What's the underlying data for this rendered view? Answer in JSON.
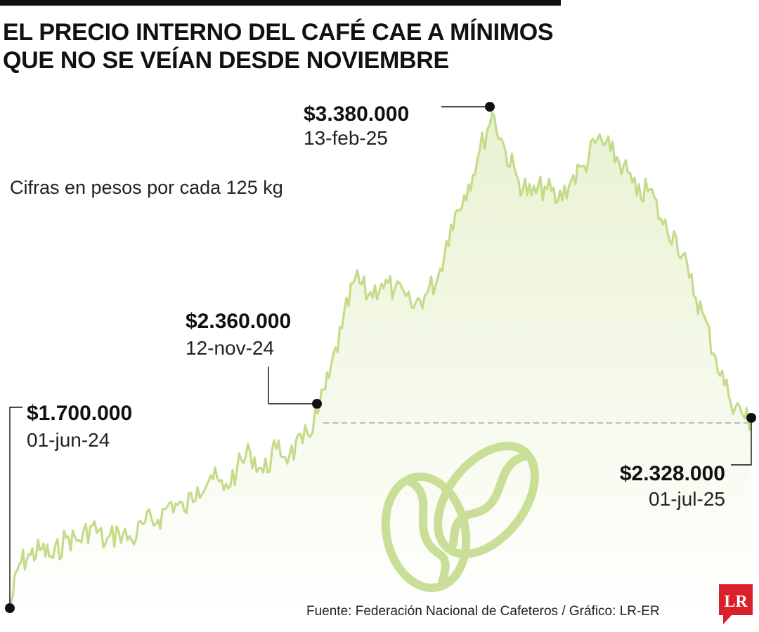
{
  "header": {
    "title": "EL PRECIO INTERNO DEL CAFÉ CAE A MÍNIMOS QUE NO SE VEÍAN DESDE NOVIEMBRE",
    "subtitle": "Cifras en pesos por cada 125 kg"
  },
  "footer": {
    "source": "Fuente: Federación Nacional de Cafeteros / Gráfico: LR-ER",
    "logo_text": "LR"
  },
  "colors": {
    "line": "#c4dc8a",
    "area_top": "#e9f2d2",
    "area_bottom": "#ffffff",
    "bean": "#c9df97",
    "text": "#111111",
    "logo": "#d9202b"
  },
  "icons": [
    "coffee-bean-icon"
  ],
  "annotations": [
    {
      "value": "$1.700.000",
      "date": "01-jun-24"
    },
    {
      "value": "$2.360.000",
      "date": "12-nov-24"
    },
    {
      "value": "$3.380.000",
      "date": "13-feb-25"
    },
    {
      "value": "$2.328.000",
      "date": "01-jul-25"
    }
  ],
  "chart_data": {
    "type": "area",
    "title": "EL PRECIO INTERNO DEL CAFÉ CAE A MÍNIMOS QUE NO SE VEÍAN DESDE NOVIEMBRE",
    "ylabel": "Cifras en pesos por cada 125 kg",
    "x_start": "2024-06-01",
    "x_end": "2025-07-01",
    "ylim": [
      1700000,
      3400000
    ],
    "reference_line": {
      "value": 2328000,
      "style": "dashed"
    },
    "grid": false,
    "series": [
      {
        "points": [
          [
            "2024-06-01",
            1700000
          ],
          [
            "2024-06-06",
            1850000
          ],
          [
            "2024-06-12",
            1880000
          ],
          [
            "2024-06-18",
            1900000
          ],
          [
            "2024-06-24",
            1870000
          ],
          [
            "2024-07-01",
            1940000
          ],
          [
            "2024-07-08",
            1930000
          ],
          [
            "2024-07-15",
            1980000
          ],
          [
            "2024-07-22",
            1920000
          ],
          [
            "2024-07-29",
            1960000
          ],
          [
            "2024-08-05",
            1930000
          ],
          [
            "2024-08-12",
            1990000
          ],
          [
            "2024-08-19",
            2000000
          ],
          [
            "2024-08-26",
            2060000
          ],
          [
            "2024-09-02",
            2030000
          ],
          [
            "2024-09-09",
            2110000
          ],
          [
            "2024-09-16",
            2150000
          ],
          [
            "2024-09-23",
            2100000
          ],
          [
            "2024-09-30",
            2170000
          ],
          [
            "2024-10-07",
            2230000
          ],
          [
            "2024-10-14",
            2160000
          ],
          [
            "2024-10-21",
            2240000
          ],
          [
            "2024-10-28",
            2220000
          ],
          [
            "2024-11-04",
            2260000
          ],
          [
            "2024-11-12",
            2360000
          ],
          [
            "2024-11-18",
            2480000
          ],
          [
            "2024-11-25",
            2650000
          ],
          [
            "2024-12-02",
            2820000
          ],
          [
            "2024-12-09",
            2760000
          ],
          [
            "2024-12-16",
            2800000
          ],
          [
            "2024-12-23",
            2780000
          ],
          [
            "2025-01-01",
            2720000
          ],
          [
            "2025-01-08",
            2760000
          ],
          [
            "2025-01-15",
            2820000
          ],
          [
            "2025-01-22",
            3000000
          ],
          [
            "2025-01-29",
            3100000
          ],
          [
            "2025-02-05",
            3220000
          ],
          [
            "2025-02-13",
            3380000
          ],
          [
            "2025-02-20",
            3250000
          ],
          [
            "2025-02-27",
            3150000
          ],
          [
            "2025-03-06",
            3100000
          ],
          [
            "2025-03-13",
            3130000
          ],
          [
            "2025-03-20",
            3080000
          ],
          [
            "2025-03-27",
            3150000
          ],
          [
            "2025-04-03",
            3200000
          ],
          [
            "2025-04-10",
            3290000
          ],
          [
            "2025-04-17",
            3250000
          ],
          [
            "2025-04-24",
            3200000
          ],
          [
            "2025-05-01",
            3100000
          ],
          [
            "2025-05-08",
            3120000
          ],
          [
            "2025-05-15",
            3000000
          ],
          [
            "2025-05-22",
            2960000
          ],
          [
            "2025-05-29",
            2820000
          ],
          [
            "2025-06-05",
            2700000
          ],
          [
            "2025-06-12",
            2550000
          ],
          [
            "2025-06-19",
            2420000
          ],
          [
            "2025-06-26",
            2360000
          ],
          [
            "2025-07-01",
            2328000
          ]
        ]
      }
    ]
  }
}
